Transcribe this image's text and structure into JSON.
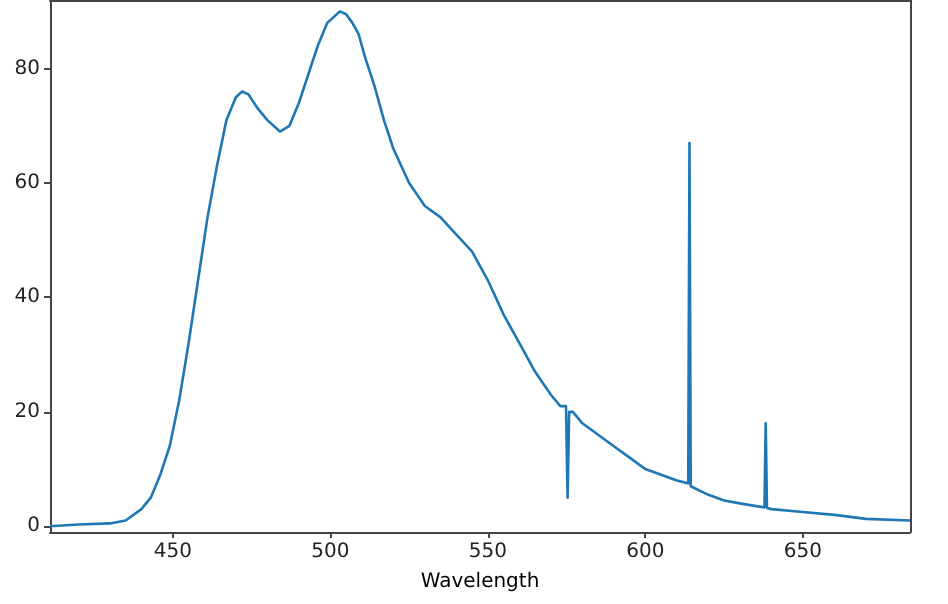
{
  "chart_data": {
    "type": "line",
    "xlabel": "Wavelength",
    "x": [
      411,
      420,
      430,
      435,
      440,
      443,
      446,
      449,
      452,
      455,
      458,
      461,
      464,
      467,
      470,
      472,
      474,
      477,
      480,
      484,
      487,
      490,
      493,
      496,
      499,
      503,
      505,
      507,
      509,
      511,
      514,
      517,
      520,
      525,
      530,
      535,
      540,
      545,
      550,
      555,
      560,
      565,
      570,
      573,
      574.8,
      575.3,
      575.8,
      577,
      580,
      585,
      590,
      595,
      600,
      605,
      610,
      613.6,
      614,
      614.4,
      620,
      625,
      630,
      637.8,
      638.2,
      638.6,
      640,
      650,
      660,
      670,
      684
    ],
    "series": [
      {
        "color": "#1f77b4",
        "values": [
          0,
          0.3,
          0.5,
          1,
          3,
          5,
          9,
          14,
          22,
          32,
          43,
          54,
          63,
          71,
          75,
          76,
          75.5,
          73,
          71,
          69,
          70,
          74,
          79,
          84,
          88,
          90,
          89.5,
          88,
          86,
          82,
          77,
          71,
          66,
          60,
          56,
          54,
          51,
          48,
          43,
          37,
          32,
          27,
          23,
          21,
          21,
          5,
          20,
          20,
          18,
          16,
          14,
          12,
          10,
          9,
          8,
          7.5,
          67,
          7,
          5.5,
          4.5,
          4,
          3.3,
          18,
          3.2,
          3,
          2.5,
          2,
          1.3,
          1
        ]
      }
    ],
    "xlim": [
      411,
      684
    ],
    "ylim": [
      -1,
      92
    ],
    "xticks": [
      450,
      500,
      550,
      600,
      650
    ],
    "yticks": [
      0,
      20,
      40,
      60,
      80
    ],
    "grid": false,
    "marker": "none",
    "line_style": "solid"
  }
}
